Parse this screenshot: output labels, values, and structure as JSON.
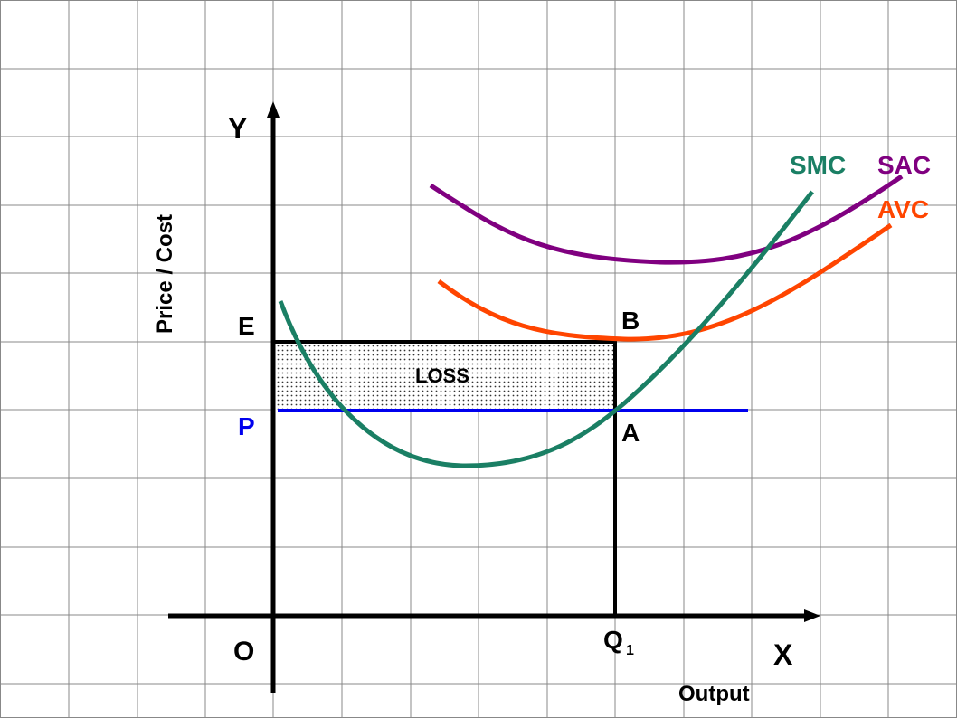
{
  "axes": {
    "y": "Y",
    "x": "X",
    "origin": "O",
    "y_title": "Price / Cost",
    "x_title": "Output"
  },
  "points": {
    "e": "E",
    "p": "P",
    "b": "B",
    "a": "A",
    "q": "Q",
    "q_sub": "1"
  },
  "curves": {
    "smc": "SMC",
    "sac": "SAC",
    "avc": "AVC"
  },
  "region": "LOSS"
}
